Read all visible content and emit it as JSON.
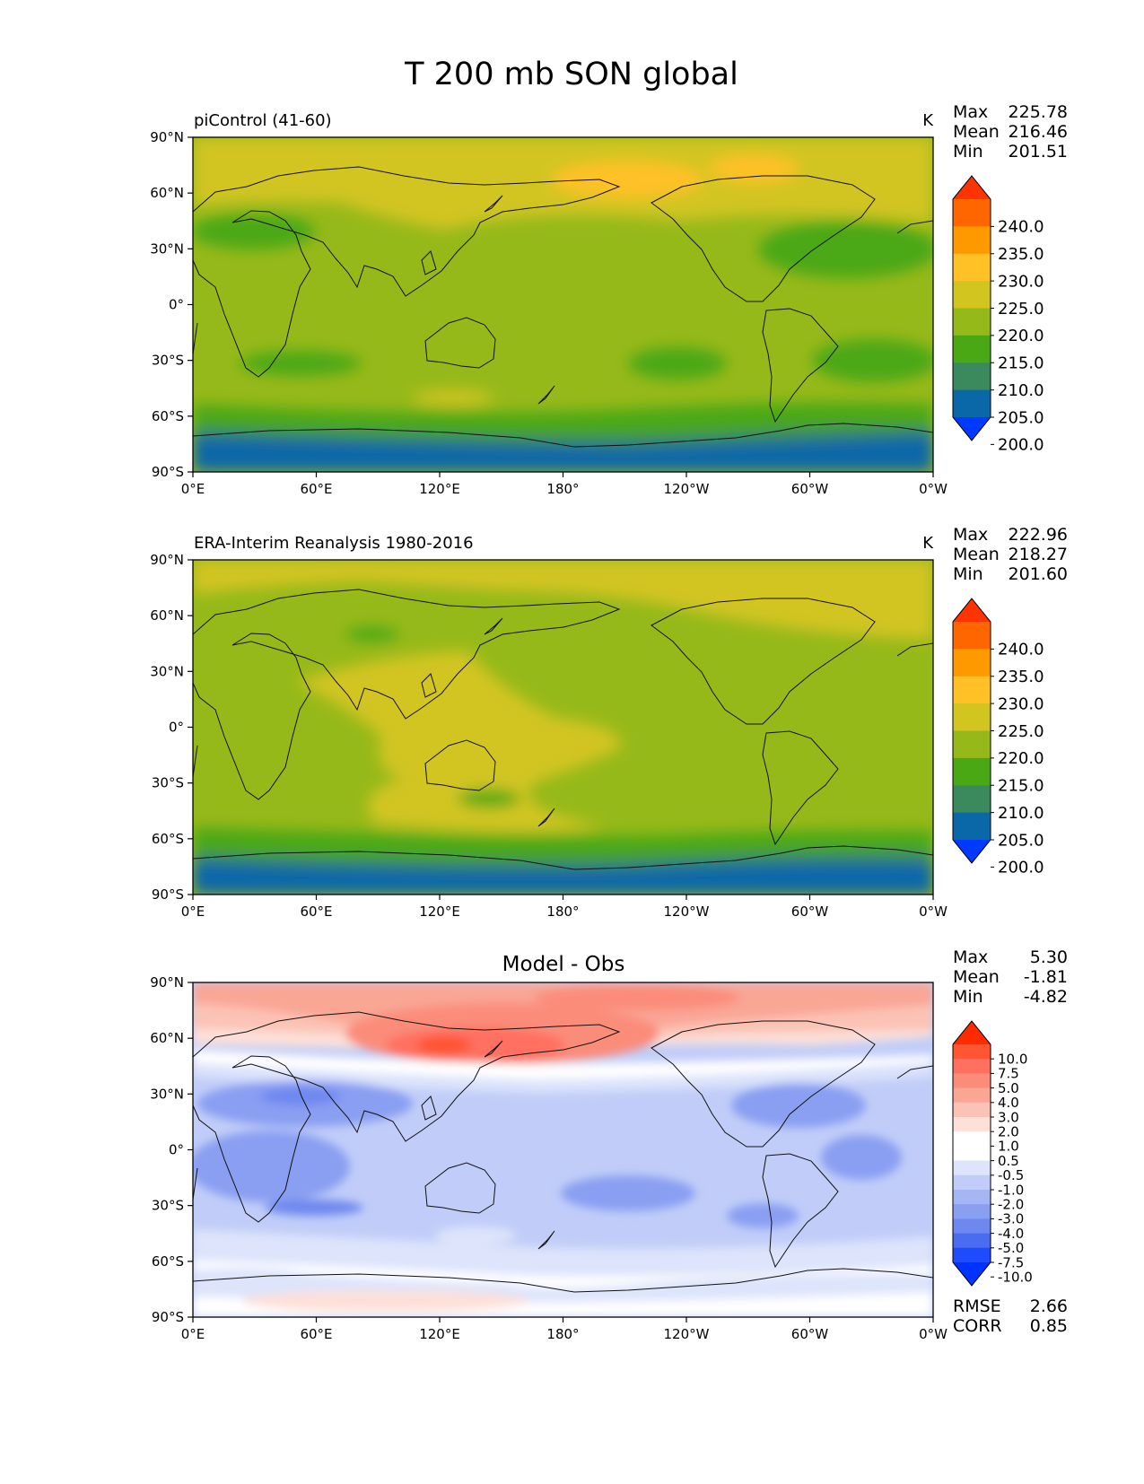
{
  "title": "T 200 mb SON global",
  "x_ticks": [
    "0°E",
    "60°E",
    "120°E",
    "180°",
    "120°W",
    "60°W",
    "0°W"
  ],
  "y_ticks": [
    "90°N",
    "60°N",
    "30°N",
    "0°",
    "30°S",
    "60°S",
    "90°S"
  ],
  "stat_labels": [
    "Max",
    "Mean",
    "Min"
  ],
  "panels": [
    {
      "left_title": "piControl (41-60)",
      "center_title": "",
      "units": "K",
      "stats": [
        "225.78",
        "216.46",
        "201.51"
      ],
      "colorbar_labels": [
        "240.0",
        "235.0",
        "230.0",
        "225.0",
        "220.0",
        "215.0",
        "210.0",
        "205.0",
        "200.0"
      ],
      "colorbar_colors": [
        "#ff3300",
        "#ff6600",
        "#ff9900",
        "#ffc125",
        "#d2c520",
        "#96b91a",
        "#4ba815",
        "#3a8a5e",
        "#0b68a8",
        "#0039ff"
      ]
    },
    {
      "left_title": "ERA-Interim Reanalysis 1980-2016",
      "center_title": "",
      "units": "K",
      "stats": [
        "222.96",
        "218.27",
        "201.60"
      ],
      "colorbar_labels": [
        "240.0",
        "235.0",
        "230.0",
        "225.0",
        "220.0",
        "215.0",
        "210.0",
        "205.0",
        "200.0"
      ],
      "colorbar_colors": [
        "#ff3300",
        "#ff6600",
        "#ff9900",
        "#ffc125",
        "#d2c520",
        "#96b91a",
        "#4ba815",
        "#3a8a5e",
        "#0b68a8",
        "#0039ff"
      ]
    },
    {
      "left_title": "",
      "center_title": "Model - Obs",
      "units": "",
      "stats": [
        "5.30",
        "-1.81",
        "-4.82"
      ],
      "colorbar_labels": [
        "10.0",
        "7.5",
        "5.0",
        "4.0",
        "3.0",
        "2.0",
        "1.0",
        "0.5",
        "-0.5",
        "-1.0",
        "-2.0",
        "-3.0",
        "-4.0",
        "-5.0",
        "-7.5",
        "-10.0"
      ],
      "colorbar_colors": [
        "#ff2a00",
        "#ff5533",
        "#ff7060",
        "#fb8c7a",
        "#f9a695",
        "#fbc3b5",
        "#fde0d8",
        "#ffffff",
        "#ffffff",
        "#dde4fb",
        "#c1cdf8",
        "#a6b6f5",
        "#8a9ff2",
        "#6e88ef",
        "#4a6cf0",
        "#1f4bff",
        "#0033ff"
      ],
      "bottom_stats": [
        {
          "label": "RMSE",
          "value": "2.66"
        },
        {
          "label": "CORR",
          "value": "0.85"
        }
      ]
    }
  ]
}
